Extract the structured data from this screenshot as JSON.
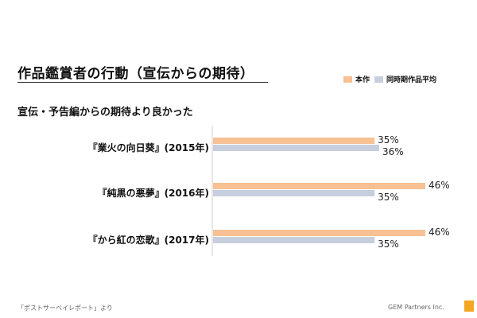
{
  "header": {
    "title": "作品鑑賞者の行動（宣伝からの期待）"
  },
  "chart_data": {
    "type": "bar",
    "orientation": "horizontal",
    "subtitle": "宣伝・予告編からの期待より良かった",
    "categories": [
      "『業火の向日葵』(2015年)",
      "『純黒の悪夢』(2016年)",
      "『から紅の恋歌』(2017年)"
    ],
    "series": [
      {
        "name": "本作",
        "color": "#f7c193",
        "values": [
          35,
          46,
          46
        ],
        "labels": [
          "35%",
          "46%",
          "46%"
        ]
      },
      {
        "name": "同時期作品平均",
        "color": "#c7cedd",
        "values": [
          36,
          35,
          35
        ],
        "labels": [
          "36%",
          "35%",
          "35%"
        ]
      }
    ],
    "xlim": [
      0,
      46
    ],
    "grid": false,
    "legend": "top-right"
  },
  "footer": {
    "source": "「ポストサーベイレポート」より",
    "company": "GEM Partners Inc."
  }
}
